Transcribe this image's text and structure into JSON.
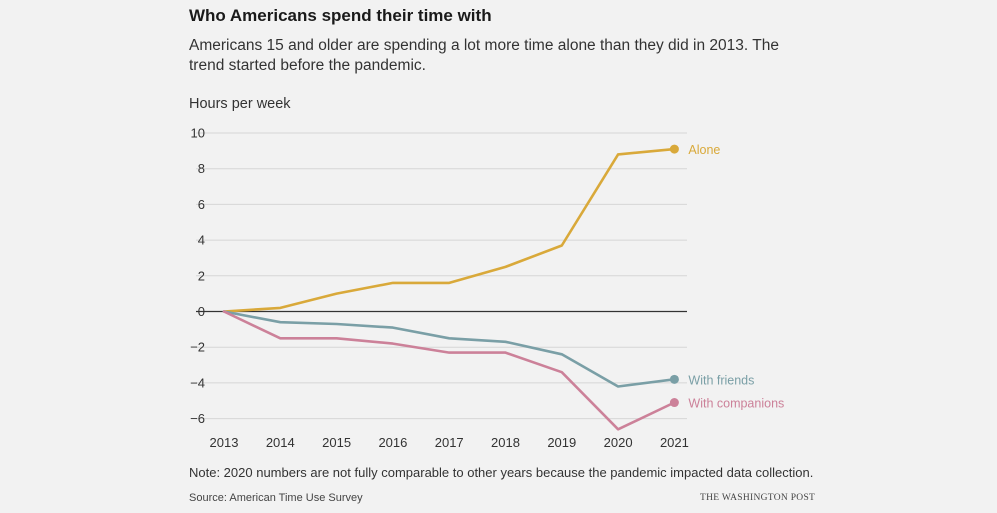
{
  "colors": {
    "alone": "#d9a93a",
    "friends": "#7a9fa6",
    "companions": "#cc8199",
    "grid": "#d6d6d6",
    "zero": "#333333"
  },
  "chart_data": {
    "type": "line",
    "title": "Who Americans spend their time with",
    "subtitle": "Americans 15 and older are spending a lot more time alone than they did in 2013. The trend started before the pandemic.",
    "ylabel": "Hours per week",
    "xlabel": "",
    "x": [
      "2013",
      "2014",
      "2015",
      "2016",
      "2017",
      "2018",
      "2019",
      "2020",
      "2021"
    ],
    "ylim": [
      -6.5,
      10
    ],
    "yticks": [
      10,
      8,
      6,
      4,
      2,
      0,
      -2,
      -4,
      -6
    ],
    "ytick_labels": [
      "10",
      "8",
      "6",
      "4",
      "2",
      "0",
      "−2",
      "−4",
      "−6"
    ],
    "grid": true,
    "series": [
      {
        "name": "Alone",
        "values": [
          0,
          0.2,
          1.0,
          1.6,
          1.6,
          2.5,
          3.7,
          8.8,
          9.1
        ]
      },
      {
        "name": "With friends",
        "values": [
          0,
          -0.6,
          -0.7,
          -0.9,
          -1.5,
          -1.7,
          -2.4,
          -4.2,
          -3.8
        ]
      },
      {
        "name": "With companions",
        "values": [
          0,
          -1.5,
          -1.5,
          -1.8,
          -2.3,
          -2.3,
          -3.4,
          -6.6,
          -5.1
        ]
      }
    ],
    "note": "Note: 2020 numbers are not fully comparable to other years because the pandemic impacted data collection.",
    "source": "Source: American Time Use Survey",
    "credit": "THE WASHINGTON POST"
  }
}
